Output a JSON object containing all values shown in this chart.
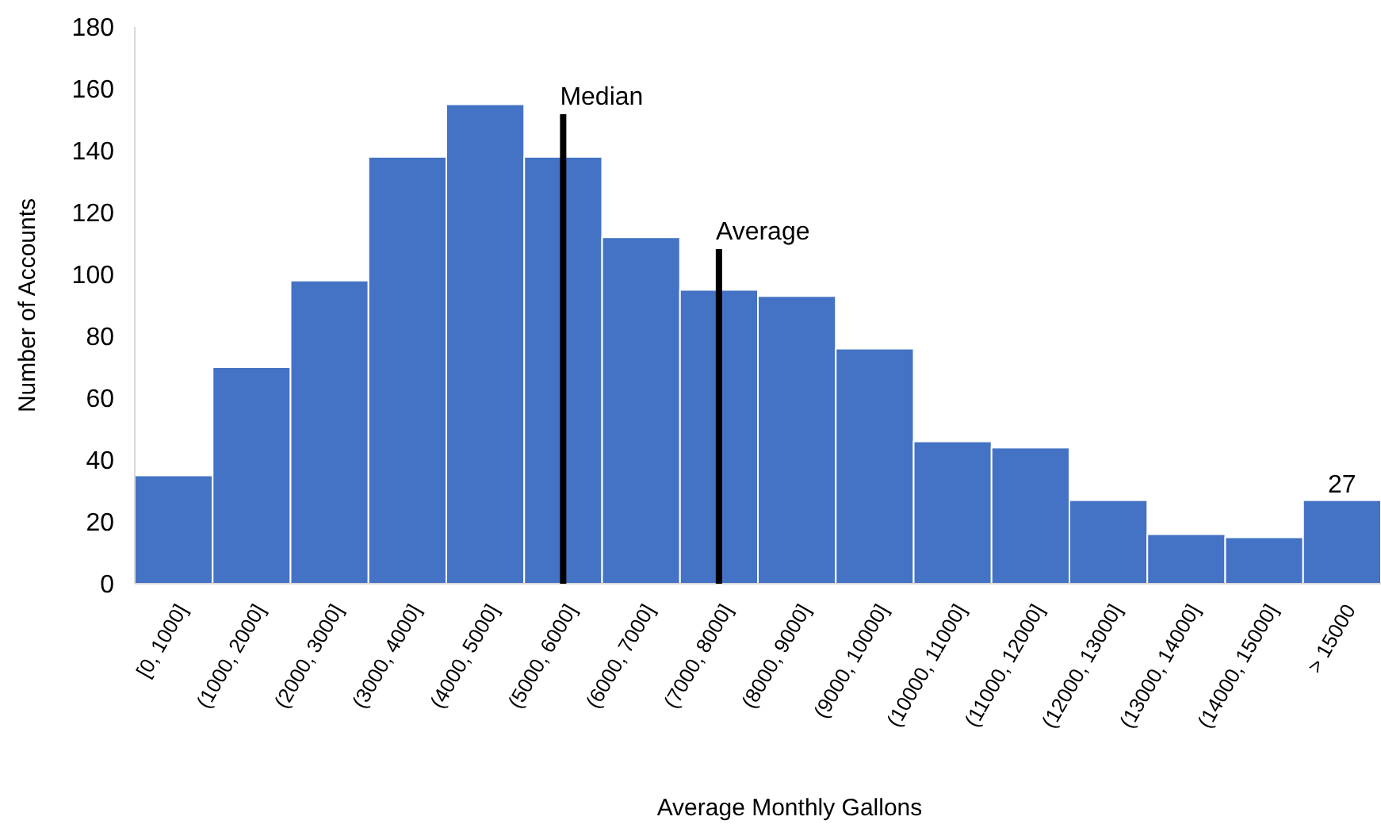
{
  "chart_data": {
    "type": "bar",
    "xlabel": "Average Monthly Gallons",
    "ylabel": "Number of Accounts",
    "categories": [
      "[0, 1000]",
      "(1000, 2000]",
      "(2000, 3000]",
      "(3000, 4000]",
      "(4000, 5000]",
      "(5000, 6000]",
      "(6000, 7000]",
      "(7000, 8000]",
      "(8000, 9000]",
      "(9000, 10000]",
      "(10000, 11000]",
      "(11000, 12000]",
      "(12000, 13000]",
      "(13000, 14000]",
      "(14000, 15000]",
      "> 15000"
    ],
    "values": [
      35,
      70,
      98,
      138,
      155,
      138,
      112,
      95,
      93,
      76,
      46,
      44,
      27,
      16,
      15,
      27
    ],
    "value_labels": [
      null,
      null,
      null,
      null,
      null,
      null,
      null,
      null,
      null,
      null,
      null,
      null,
      null,
      null,
      null,
      "27"
    ],
    "color": "#4472c4",
    "ylim": [
      0,
      180
    ],
    "yticks": [
      0,
      20,
      40,
      60,
      80,
      100,
      120,
      140,
      160,
      180
    ],
    "ref_lines": [
      {
        "axis": "x",
        "value": "(5000, 6000]",
        "label": "Median",
        "color": "#000000"
      },
      {
        "axis": "x",
        "value": "(7000, 8000]",
        "label": "Average",
        "color": "#000000"
      }
    ],
    "grid": false
  }
}
